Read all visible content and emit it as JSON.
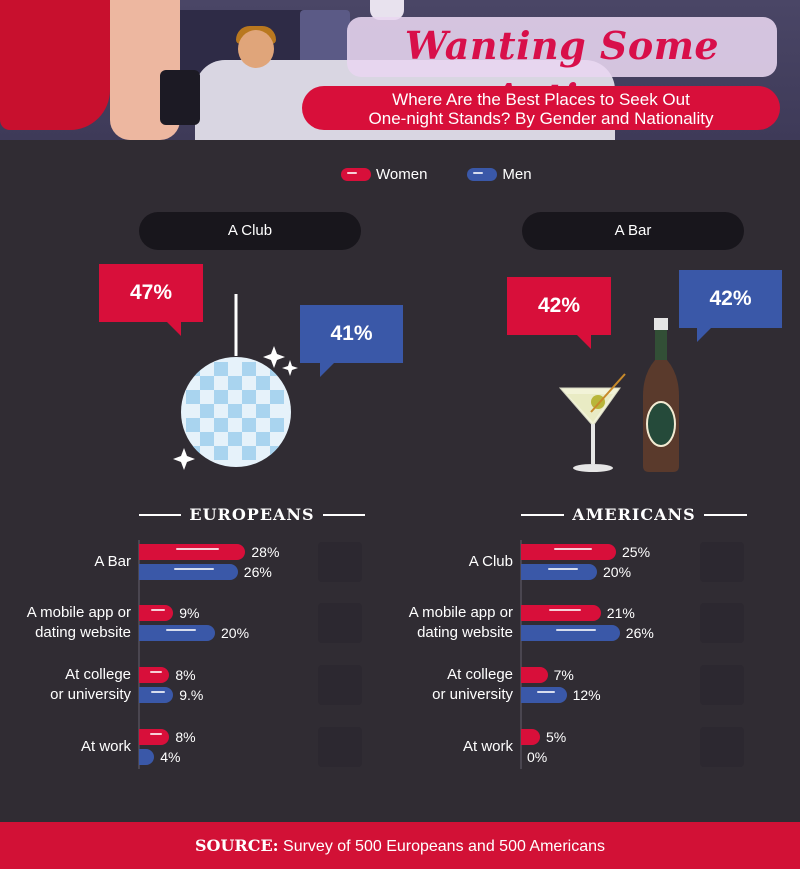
{
  "header": {
    "title": "Wanting Some Action",
    "subtitle_line1": "Where Are the Best Places to Seek Out",
    "subtitle_line2": "One-night Stands? By Gender and Nationality"
  },
  "legend": [
    {
      "label": "Women",
      "color": "#d80f3a"
    },
    {
      "label": "Men",
      "color": "#3a58a8"
    }
  ],
  "top_places": [
    {
      "place": "A Club",
      "women": "47%",
      "men": "41%",
      "icon": "disco-ball-icon"
    },
    {
      "place": "A Bar",
      "women": "42%",
      "men": "42%",
      "icon": "martini-and-beer-icon"
    }
  ],
  "colors": {
    "women": "#d80f3a",
    "men": "#3a58a8",
    "background": "#302c33",
    "footer": "#d21136"
  },
  "chart_data": [
    {
      "type": "bar",
      "title": "EUROPEANS",
      "categories": [
        "A Bar",
        "A mobile app or dating website",
        "At college or university",
        "At work"
      ],
      "series": [
        {
          "name": "Women",
          "values": [
            28,
            9,
            8,
            8
          ]
        },
        {
          "name": "Men",
          "values": [
            26,
            20,
            9,
            4
          ]
        }
      ],
      "value_labels": {
        "Women": [
          "28%",
          "9%",
          "8%",
          "8%"
        ],
        "Men": [
          "26%",
          "20%",
          "9.%",
          "4%"
        ]
      }
    },
    {
      "type": "bar",
      "title": "AMERICANS",
      "categories": [
        "A Club",
        "A mobile app or dating website",
        "At college or university",
        "At work"
      ],
      "series": [
        {
          "name": "Women",
          "values": [
            25,
            21,
            7,
            5
          ]
        },
        {
          "name": "Men",
          "values": [
            20,
            26,
            12,
            0
          ]
        }
      ],
      "value_labels": {
        "Women": [
          "25%",
          "21%",
          "7%",
          "5%"
        ],
        "Men": [
          "20%",
          "26%",
          "12%",
          "0%"
        ]
      }
    }
  ],
  "footer": {
    "source_label": "SOURCE:",
    "source_text": "Survey of 500 Europeans and 500 Americans"
  }
}
